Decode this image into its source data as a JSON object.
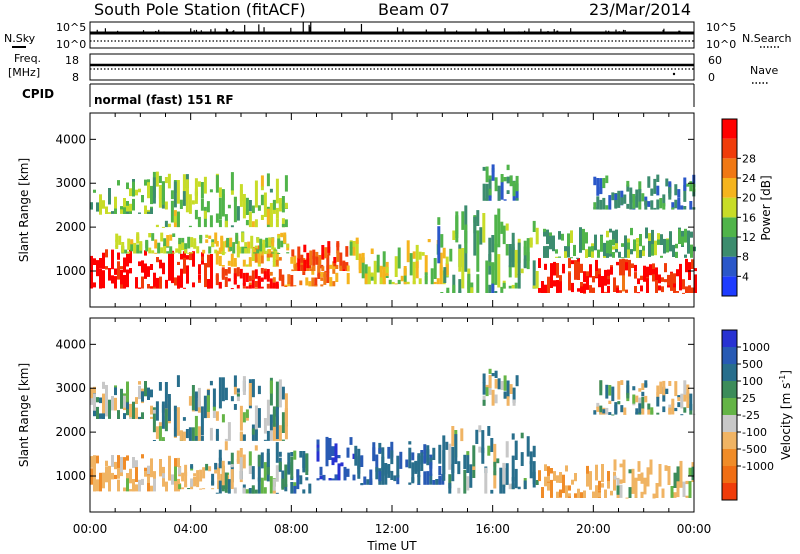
{
  "header": {
    "station": "South Pole Station (fitACF)",
    "beam": "Beam 07",
    "date": "23/Mar/2014"
  },
  "mini_panels": {
    "nsky_label": "N.Sky",
    "nsearch_label": "N.Search",
    "noise_top_tick": "10^5",
    "noise_bottom_tick": "10^0",
    "freq_label": "Freq.",
    "freq_unit": "[MHz]",
    "freq_ticks": [
      "18",
      "8"
    ],
    "nave_label": "Nave",
    "nave_ticks": [
      "60",
      "0"
    ],
    "cpid_label": "CPID",
    "cpid_text": "normal (fast) 151 RF"
  },
  "axes": {
    "x_label": "Time UT",
    "y_label": "Slant Range [km]",
    "x_ticks": [
      "00:00",
      "04:00",
      "08:00",
      "12:00",
      "16:00",
      "20:00",
      "00:00"
    ],
    "y_ticks": [
      "1000",
      "2000",
      "3000",
      "4000"
    ]
  },
  "colorbars": {
    "power": {
      "label": "Power [dB]",
      "ticks": [
        "4",
        "8",
        "12",
        "16",
        "20",
        "24",
        "28"
      ],
      "colors": [
        "#1e3cff",
        "#2a57c9",
        "#3c8c6e",
        "#50b44a",
        "#c8dc28",
        "#f5b41e",
        "#f07814",
        "#f03c0a",
        "#ff0000"
      ]
    },
    "velocity": {
      "label": "Velocity [m s",
      "label_superscript": "-1",
      "label_close": "]",
      "ticks": [
        "1000",
        "500",
        "100",
        "25",
        "-25",
        "-100",
        "-500",
        "-1000"
      ],
      "colors": [
        "#2832d2",
        "#285ab4",
        "#286e8c",
        "#3c8c5a",
        "#64b446",
        "#c8c8c8",
        "#f0b464",
        "#f08c28",
        "#f06e14",
        "#f03c0a"
      ]
    }
  },
  "chart_data": [
    {
      "type": "heatmap",
      "name_printed": "Power [dB]",
      "xlabel": "Time UT",
      "ylabel": "Slant Range [km]",
      "xlim": [
        "00:00",
        "24:00"
      ],
      "ylim": [
        180,
        4600
      ],
      "clim": [
        0,
        30
      ],
      "bands": [
        {
          "t": [
            0.0,
            5.0
          ],
          "r": [
            600,
            1500
          ],
          "value": 28
        },
        {
          "t": [
            5.0,
            7.6
          ],
          "r": [
            600,
            1100
          ],
          "value": 26
        },
        {
          "t": [
            5.0,
            7.6
          ],
          "r": [
            1100,
            1700
          ],
          "value": 18
        },
        {
          "t": [
            1.0,
            8.0
          ],
          "r": [
            1400,
            1900
          ],
          "value": 14
        },
        {
          "t": [
            7.6,
            9.8
          ],
          "r": [
            650,
            1400
          ],
          "value": 22
        },
        {
          "t": [
            8.0,
            10.2
          ],
          "r": [
            1000,
            1700
          ],
          "value": 24
        },
        {
          "t": [
            10.2,
            14.2
          ],
          "r": [
            700,
            1800
          ],
          "value": 16
        },
        {
          "t": [
            13.8,
            16.4
          ],
          "r": [
            500,
            2500
          ],
          "value": 10
        },
        {
          "t": [
            16.4,
            17.8
          ],
          "r": [
            600,
            2200
          ],
          "value": 12
        },
        {
          "t": [
            17.8,
            24.0
          ],
          "r": [
            500,
            1300
          ],
          "value": 27
        },
        {
          "t": [
            18.0,
            24.0
          ],
          "r": [
            1300,
            2000
          ],
          "value": 11
        },
        {
          "t": [
            0.0,
            2.5
          ],
          "r": [
            2300,
            3100
          ],
          "value": 12
        },
        {
          "t": [
            2.5,
            7.8
          ],
          "r": [
            2000,
            3300
          ],
          "value": 13
        },
        {
          "t": [
            15.6,
            17.0
          ],
          "r": [
            2600,
            3500
          ],
          "value": 9
        },
        {
          "t": [
            20.0,
            24.0
          ],
          "r": [
            2400,
            3200
          ],
          "value": 8
        }
      ]
    },
    {
      "type": "heatmap",
      "name_printed": "Velocity [m s-1]",
      "xlabel": "Time UT",
      "ylabel": "Slant Range [km]",
      "xlim": [
        "00:00",
        "24:00"
      ],
      "ylim": [
        180,
        4600
      ],
      "clim": [
        -1000,
        1000
      ],
      "bands": [
        {
          "t": [
            0.0,
            3.5
          ],
          "r": [
            650,
            1500
          ],
          "value": -300
        },
        {
          "t": [
            3.5,
            5.5
          ],
          "r": [
            700,
            1300
          ],
          "value": -150
        },
        {
          "t": [
            5.0,
            7.6
          ],
          "r": [
            600,
            1800
          ],
          "value": 50
        },
        {
          "t": [
            7.6,
            9.0
          ],
          "r": [
            600,
            1600
          ],
          "value": 300
        },
        {
          "t": [
            9.0,
            10.5
          ],
          "r": [
            900,
            1900
          ],
          "value": 900
        },
        {
          "t": [
            10.5,
            14.0
          ],
          "r": [
            800,
            1800
          ],
          "value": 400
        },
        {
          "t": [
            14.0,
            16.4
          ],
          "r": [
            600,
            2200
          ],
          "value": 120
        },
        {
          "t": [
            16.4,
            17.8
          ],
          "r": [
            700,
            2000
          ],
          "value": 200
        },
        {
          "t": [
            17.8,
            20.8
          ],
          "r": [
            500,
            1300
          ],
          "value": -400
        },
        {
          "t": [
            20.8,
            24.0
          ],
          "r": [
            500,
            1400
          ],
          "value": -200
        },
        {
          "t": [
            0.0,
            2.5
          ],
          "r": [
            2300,
            3200
          ],
          "value": 0
        },
        {
          "t": [
            2.5,
            7.8
          ],
          "r": [
            1800,
            3300
          ],
          "value": 5
        },
        {
          "t": [
            15.6,
            17.0
          ],
          "r": [
            2600,
            3500
          ],
          "value": -40
        },
        {
          "t": [
            20.0,
            24.0
          ],
          "r": [
            2400,
            3200
          ],
          "value": 10
        }
      ]
    }
  ]
}
